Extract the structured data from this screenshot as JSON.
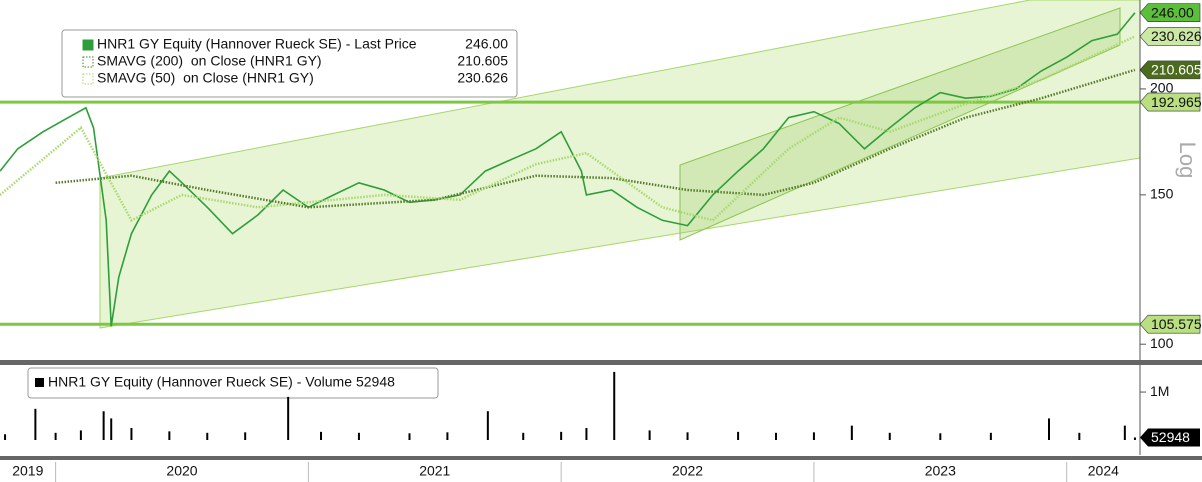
{
  "chart_data": [
    {
      "type": "line",
      "scale": "log",
      "axis_label": "Log",
      "xlim": [
        2019.78,
        2024.29
      ],
      "ylim": [
        95.8,
        254.6
      ],
      "yticks": [
        100,
        150,
        200
      ],
      "xticks": [
        {
          "value": 2019,
          "label": "2019"
        },
        {
          "value": 2020,
          "label": "2020"
        },
        {
          "value": 2021,
          "label": "2021"
        },
        {
          "value": 2022,
          "label": "2022"
        },
        {
          "value": 2023,
          "label": "2023"
        },
        {
          "value": 2024,
          "label": "2024"
        }
      ],
      "hlines": [
        192.965,
        105.575
      ],
      "hline_color": "#7cc940",
      "series": [
        {
          "name": "HNR1 GY Equity (Hannover Rueck SE) - Last Price",
          "color": "#2e9e3a",
          "style": "solid",
          "last_value_label": "246.00",
          "x": [
            2019.78,
            2019.85,
            2019.95,
            2020.05,
            2020.12,
            2020.15,
            2020.2,
            2020.22,
            2020.25,
            2020.3,
            2020.38,
            2020.45,
            2020.5,
            2020.6,
            2020.7,
            2020.8,
            2020.9,
            2021.0,
            2021.1,
            2021.2,
            2021.3,
            2021.4,
            2021.5,
            2021.6,
            2021.7,
            2021.8,
            2021.9,
            2022.0,
            2022.08,
            2022.1,
            2022.2,
            2022.3,
            2022.4,
            2022.5,
            2022.6,
            2022.7,
            2022.8,
            2022.9,
            2023.0,
            2023.1,
            2023.2,
            2023.3,
            2023.4,
            2023.5,
            2023.6,
            2023.7,
            2023.8,
            2023.9,
            2024.0,
            2024.1,
            2024.2,
            2024.27
          ],
          "values": [
            160,
            170,
            178,
            185,
            190,
            180,
            140,
            105,
            120,
            135,
            150,
            160,
            155,
            145,
            135,
            142,
            152,
            145,
            150,
            155,
            152,
            147,
            148,
            150,
            160,
            165,
            170,
            178,
            160,
            150,
            152,
            145,
            140,
            138,
            150,
            160,
            170,
            185,
            188,
            182,
            170,
            180,
            190,
            198,
            195,
            196,
            200,
            210,
            218,
            228,
            232,
            246
          ]
        },
        {
          "name": "SMAVG (200)  on Close (HNR1 GY)",
          "color": "#55792a",
          "style": "dotted",
          "x": [
            2020.0,
            2020.3,
            2020.6,
            2021.0,
            2021.5,
            2021.9,
            2022.2,
            2022.5,
            2022.8,
            2023.0,
            2023.3,
            2023.6,
            2023.9,
            2024.27
          ],
          "values": [
            155,
            158,
            152,
            145,
            148,
            158,
            157,
            152,
            150,
            155,
            170,
            185,
            195,
            210.605
          ]
        },
        {
          "name": "SMAVG (50)  on Close (HNR1 GY)",
          "color": "#a9d86e",
          "style": "dotted",
          "x": [
            2019.78,
            2020.1,
            2020.3,
            2020.5,
            2020.8,
            2021.0,
            2021.3,
            2021.6,
            2021.9,
            2022.1,
            2022.4,
            2022.6,
            2022.9,
            2023.1,
            2023.3,
            2023.6,
            2023.9,
            2024.27
          ],
          "values": [
            150,
            180,
            140,
            150,
            145,
            147,
            150,
            148,
            163,
            168,
            145,
            140,
            170,
            185,
            178,
            192,
            205,
            230.626
          ]
        }
      ]
    },
    {
      "type": "bar",
      "xlim": [
        2019.78,
        2024.29
      ],
      "ylim": [
        0,
        1460000
      ],
      "yticks": [
        {
          "value": 1000000,
          "label": "1M"
        }
      ],
      "series": [
        {
          "name": "HNR1 GY Equity (Hannover Rueck SE) - Volume",
          "color": "#000000",
          "x": [
            2019.8,
            2019.92,
            2020.0,
            2020.1,
            2020.19,
            2020.22,
            2020.3,
            2020.45,
            2020.6,
            2020.75,
            2020.92,
            2021.05,
            2021.2,
            2021.4,
            2021.55,
            2021.71,
            2021.85,
            2022.0,
            2022.1,
            2022.21,
            2022.35,
            2022.5,
            2022.7,
            2022.85,
            2023.0,
            2023.15,
            2023.3,
            2023.5,
            2023.7,
            2023.93,
            2024.05,
            2024.23,
            2024.27
          ],
          "values": [
            120000,
            650000,
            150000,
            200000,
            600000,
            450000,
            250000,
            180000,
            150000,
            160000,
            900000,
            170000,
            150000,
            140000,
            160000,
            600000,
            150000,
            170000,
            250000,
            1420000,
            200000,
            160000,
            170000,
            150000,
            160000,
            300000,
            150000,
            140000,
            150000,
            450000,
            150000,
            300000,
            52948
          ]
        }
      ]
    }
  ]
}
